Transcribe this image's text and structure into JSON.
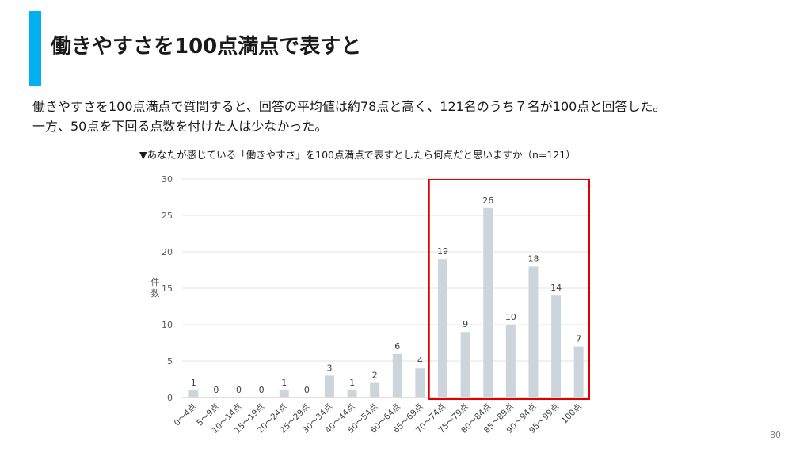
{
  "slide": {
    "title": "働きやすさを100点満点で表すと",
    "body_line1": "働きやすさを100点満点で質問すると、回答の平均値は約78点と高く、121名のうち７名が100点と回答した。",
    "body_line2": "一方、50点を下回る点数を付けた人は少なかった。",
    "question": "▼あなたが感じている「働きやすさ」を100点満点で表すとしたら何点だと思いますか（n=121）",
    "page_number": "80",
    "accent_color": "#00b0f0",
    "highlight_color": "#e00000"
  },
  "chart_data": {
    "type": "bar",
    "ylabel": "件数",
    "xlabel": "",
    "ylim": [
      0,
      30
    ],
    "yticks": [
      "0",
      "5",
      "10",
      "15",
      "20",
      "25",
      "30"
    ],
    "categories": [
      "0～4点",
      "5～9点",
      "10～14点",
      "15～19点",
      "20～24点",
      "25～29点",
      "30～34点",
      "40～44点",
      "50～54点",
      "60～64点",
      "65～69点",
      "70～74点",
      "75～79点",
      "80～84点",
      "85～89点",
      "90～94点",
      "95～99点",
      "100点"
    ],
    "values": [
      1,
      0,
      0,
      0,
      1,
      0,
      3,
      1,
      2,
      6,
      4,
      19,
      9,
      26,
      10,
      18,
      14,
      7
    ],
    "bar_color": "#cdd5dc",
    "grid": true,
    "highlighted_range": [
      "70～74点",
      "100点"
    ]
  }
}
